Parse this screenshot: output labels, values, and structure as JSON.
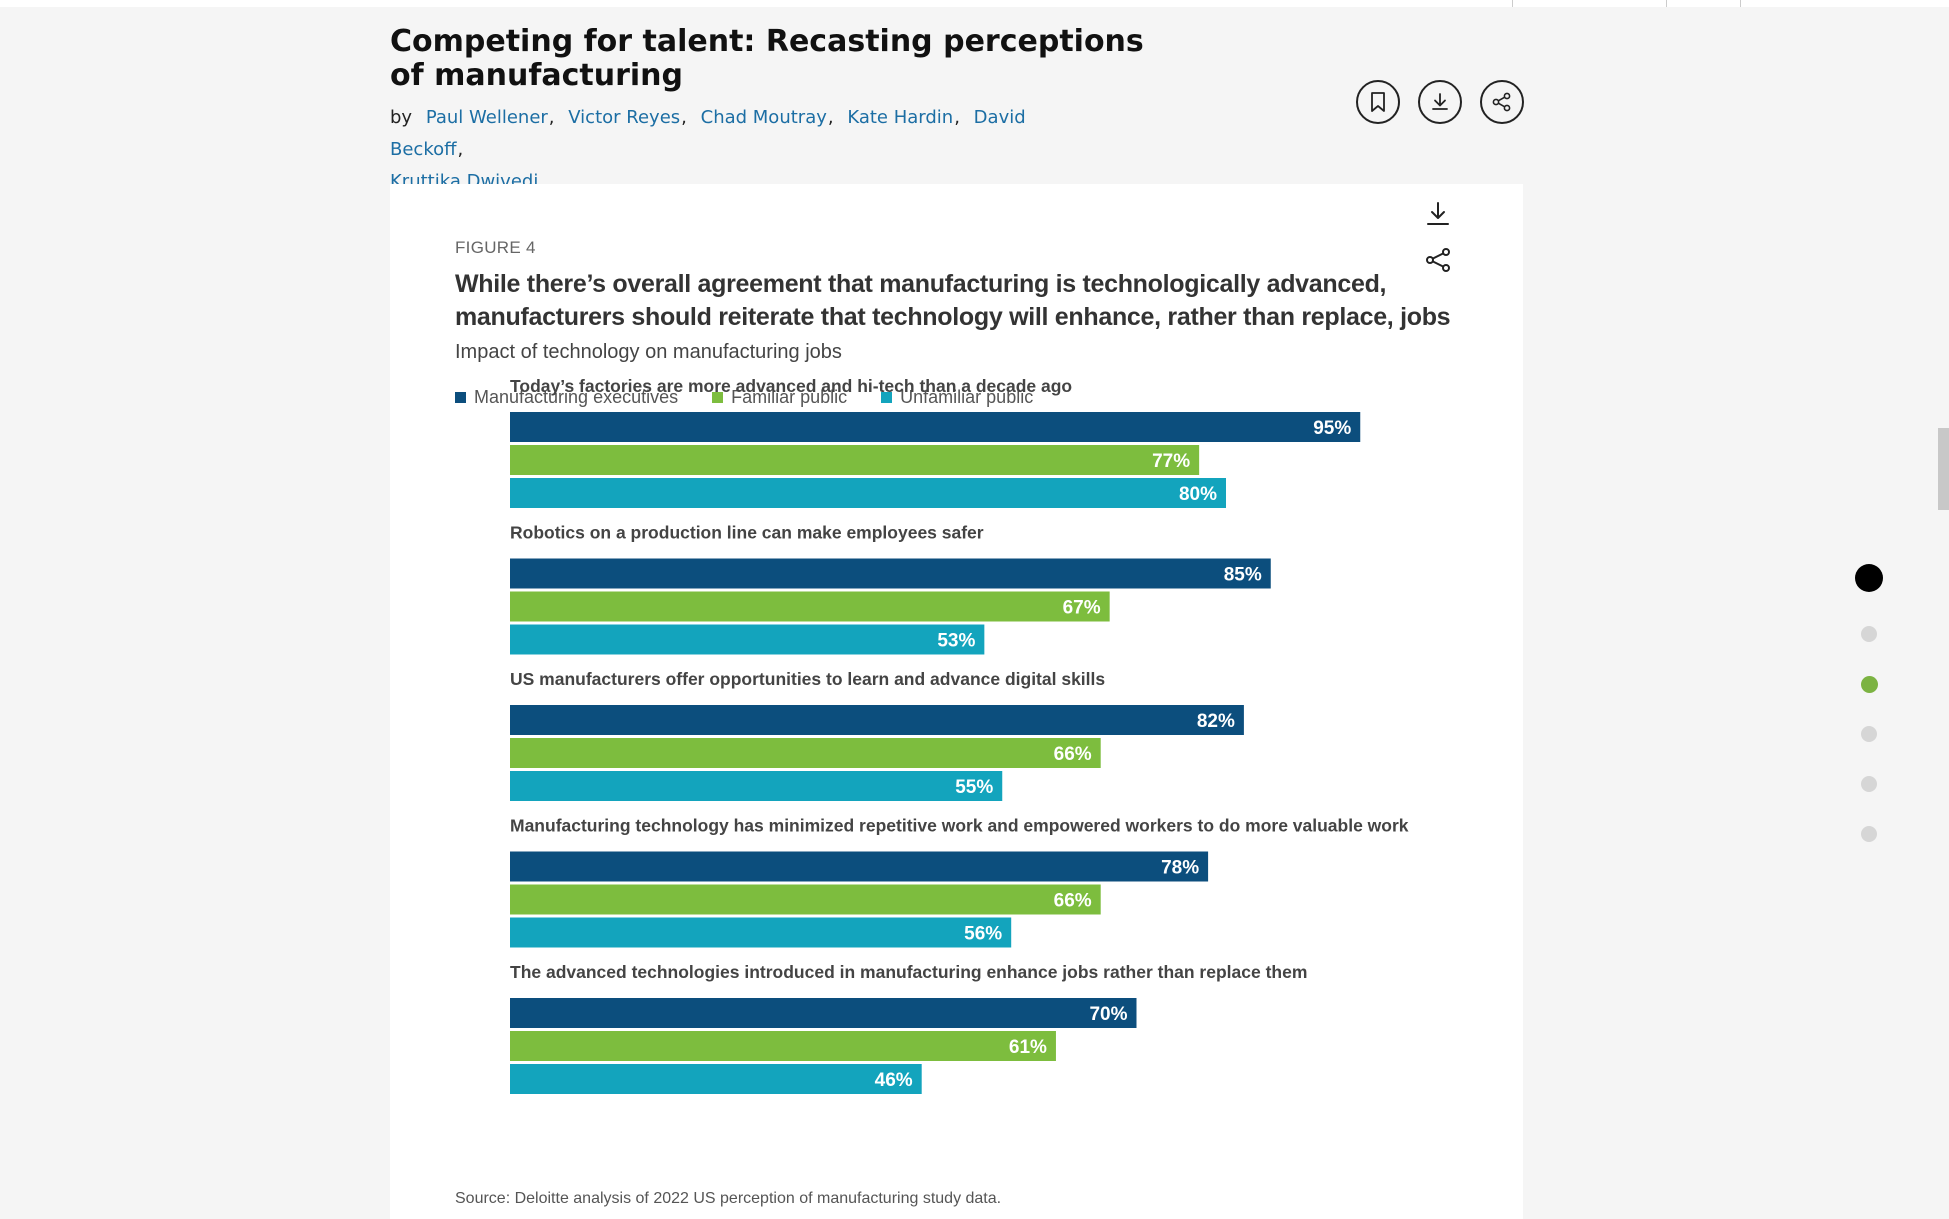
{
  "article": {
    "title": "Competing for talent: Recasting perceptions of manufacturing",
    "by_label": "by",
    "authors": [
      "Paul Wellener",
      "Victor Reyes",
      "Chad Moutray",
      "Kate Hardin",
      "David Beckoff",
      "Kruttika Dwivedi"
    ]
  },
  "header_icons": [
    "bookmark-icon",
    "download-icon",
    "share-icon"
  ],
  "figure": {
    "label": "FIGURE 4",
    "title": "While there’s overall agreement that manufacturing is technologically advanced, manufacturers should reiterate that technology will enhance, rather than replace, jobs",
    "subtitle": "Impact of technology on manufacturing jobs",
    "source": "Source: Deloitte analysis of 2022 US perception of manufacturing study data.",
    "icons": [
      "download-icon",
      "share-icon"
    ]
  },
  "chart_data": {
    "type": "bar",
    "orientation": "horizontal",
    "categories": [
      "Today’s factories are more advanced and hi-tech than a decade ago",
      "Robotics on a production line can make employees safer",
      "US manufacturers offer opportunities to learn and advance digital skills",
      "Manufacturing technology has minimized repetitive work and empowered workers to do more valuable work",
      "The advanced technologies introduced in manufacturing enhance jobs rather than replace them"
    ],
    "series": [
      {
        "name": "Manufacturing executives",
        "color": "#0c4e7d",
        "values": [
          95,
          85,
          82,
          78,
          70
        ]
      },
      {
        "name": "Familiar public",
        "color": "#7dbd3e",
        "values": [
          77,
          67,
          66,
          66,
          61
        ]
      },
      {
        "name": "Unfamiliar public",
        "color": "#13a4bd",
        "values": [
          80,
          53,
          55,
          56,
          46
        ]
      }
    ],
    "value_suffix": "%",
    "legend_position": "top-left",
    "grid": false
  },
  "page_nav_dots": [
    {
      "state": "current",
      "color": "#000000"
    },
    {
      "state": "inactive",
      "color": "#d6d6d6"
    },
    {
      "state": "highlight",
      "color": "#7cb342"
    },
    {
      "state": "inactive",
      "color": "#d6d6d6"
    },
    {
      "state": "inactive",
      "color": "#d6d6d6"
    },
    {
      "state": "inactive",
      "color": "#d6d6d6"
    }
  ]
}
